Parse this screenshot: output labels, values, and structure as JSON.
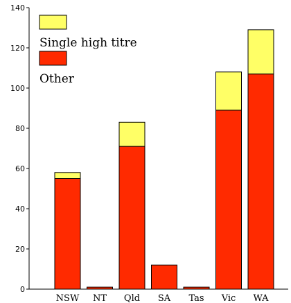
{
  "chart_data": {
    "type": "bar",
    "stacked": true,
    "categories": [
      "NSW",
      "NT",
      "Qld",
      "SA",
      "Tas",
      "Vic",
      "WA"
    ],
    "series": [
      {
        "name": "Other",
        "color": "#ff2a00",
        "values": [
          55,
          1,
          71,
          12,
          1,
          89,
          107
        ]
      },
      {
        "name": "Single high titre",
        "color": "#ffff66",
        "values": [
          3,
          0,
          12,
          0,
          0,
          19,
          22
        ]
      }
    ],
    "ylim": [
      0,
      140
    ],
    "yticks": [
      "0",
      "20",
      "40",
      "60",
      "80",
      "100",
      "120",
      "140"
    ],
    "legend_position": "top-left",
    "grid": false
  }
}
